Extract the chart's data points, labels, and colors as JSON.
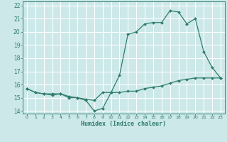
{
  "xlabel": "Humidex (Indice chaleur)",
  "background_color": "#cce8e8",
  "grid_color": "#ffffff",
  "line_color": "#2e7d6e",
  "xlim": [
    -0.5,
    23.5
  ],
  "ylim": [
    13.8,
    22.3
  ],
  "yticks": [
    14,
    15,
    16,
    17,
    18,
    19,
    20,
    21,
    22
  ],
  "xticks": [
    0,
    1,
    2,
    3,
    4,
    5,
    6,
    7,
    8,
    9,
    10,
    11,
    12,
    13,
    14,
    15,
    16,
    17,
    18,
    19,
    20,
    21,
    22,
    23
  ],
  "line1_x": [
    0,
    1,
    2,
    3,
    4,
    5,
    6,
    7,
    8,
    9,
    10,
    11,
    12,
    13,
    14,
    15,
    16,
    17,
    18,
    19,
    20,
    21,
    22,
    23
  ],
  "line1_y": [
    15.7,
    15.4,
    15.3,
    15.3,
    15.3,
    15.0,
    15.0,
    14.8,
    14.0,
    14.2,
    15.4,
    16.7,
    19.8,
    20.0,
    20.6,
    20.7,
    20.7,
    21.6,
    21.5,
    20.6,
    21.0,
    18.5,
    17.3,
    16.5
  ],
  "line2_x": [
    0,
    1,
    2,
    3,
    4,
    5,
    6,
    7,
    8,
    9,
    10,
    11,
    12,
    13,
    14,
    15,
    16,
    17,
    18,
    19,
    20,
    21,
    22,
    23
  ],
  "line2_y": [
    15.7,
    15.4,
    15.3,
    15.2,
    15.3,
    15.1,
    15.0,
    14.9,
    14.8,
    15.4,
    15.4,
    15.4,
    15.5,
    15.5,
    15.7,
    15.8,
    15.9,
    16.1,
    16.3,
    16.4,
    16.5,
    16.5,
    16.5,
    16.5
  ]
}
